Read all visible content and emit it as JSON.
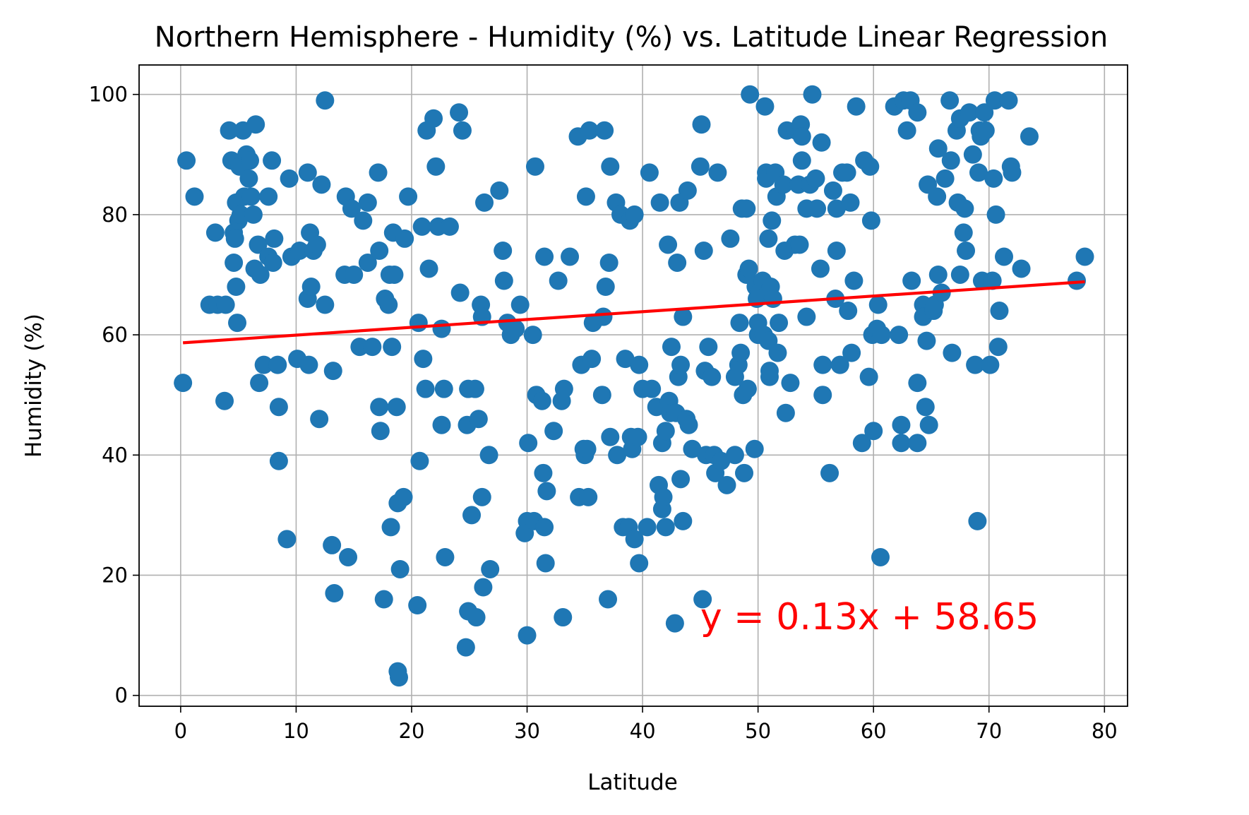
{
  "chart_data": {
    "type": "scatter",
    "title": "Northern Hemisphere - Humidity (%) vs. Latitude Linear Regression",
    "xlabel": "Latitude",
    "ylabel": "Humidity (%)",
    "xlim": [
      -3.6,
      82
    ],
    "ylim": [
      -1.8,
      104.9
    ],
    "xticks": [
      0,
      10,
      20,
      30,
      40,
      50,
      60,
      70,
      80
    ],
    "yticks": [
      0,
      20,
      40,
      60,
      80,
      100
    ],
    "grid": true,
    "point_color": "#1f77b4",
    "line_color": "#ff0000",
    "regression": {
      "slope": 0.13,
      "intercept": 58.65,
      "x_range": [
        0.2,
        78.3
      ],
      "equation": "y = 0.13x + 58.65",
      "equation_position": [
        45,
        11
      ]
    },
    "points": [
      [
        0.2,
        52
      ],
      [
        0.5,
        89
      ],
      [
        1.2,
        83
      ],
      [
        2.5,
        65
      ],
      [
        3,
        77
      ],
      [
        3.2,
        65
      ],
      [
        3.9,
        65
      ],
      [
        3.8,
        49
      ],
      [
        4.2,
        94
      ],
      [
        4.4,
        89
      ],
      [
        4.6,
        72
      ],
      [
        4.6,
        77
      ],
      [
        4.7,
        76
      ],
      [
        4.8,
        68
      ],
      [
        4.8,
        82
      ],
      [
        4.9,
        62
      ],
      [
        5,
        79
      ],
      [
        5.1,
        88
      ],
      [
        5.2,
        80
      ],
      [
        5.4,
        94
      ],
      [
        5.5,
        83
      ],
      [
        5.7,
        90
      ],
      [
        5.9,
        86
      ],
      [
        6,
        89
      ],
      [
        6.1,
        83
      ],
      [
        6.3,
        80
      ],
      [
        6.5,
        95
      ],
      [
        6.4,
        71
      ],
      [
        6.7,
        75
      ],
      [
        6.8,
        52
      ],
      [
        6.9,
        70
      ],
      [
        7.2,
        55
      ],
      [
        7.6,
        73
      ],
      [
        7.6,
        83
      ],
      [
        7.9,
        89
      ],
      [
        8,
        72
      ],
      [
        8.1,
        76
      ],
      [
        8.4,
        55
      ],
      [
        8.5,
        48
      ],
      [
        8.5,
        39
      ],
      [
        9.2,
        26
      ],
      [
        9.4,
        86
      ],
      [
        9.6,
        73
      ],
      [
        10.1,
        56
      ],
      [
        10.3,
        74
      ],
      [
        11,
        87
      ],
      [
        11,
        66
      ],
      [
        11.1,
        55
      ],
      [
        11.2,
        77
      ],
      [
        11.3,
        68
      ],
      [
        11.5,
        74
      ],
      [
        11.8,
        75
      ],
      [
        12,
        46
      ],
      [
        12.2,
        85
      ],
      [
        12.5,
        99
      ],
      [
        12.5,
        65
      ],
      [
        13.1,
        25
      ],
      [
        13.2,
        54
      ],
      [
        13.3,
        17
      ],
      [
        14.2,
        70
      ],
      [
        14.3,
        83
      ],
      [
        14.5,
        23
      ],
      [
        14.8,
        81
      ],
      [
        15,
        70
      ],
      [
        15.5,
        58
      ],
      [
        15.8,
        79
      ],
      [
        16.2,
        72
      ],
      [
        16.2,
        82
      ],
      [
        16.6,
        58
      ],
      [
        17.1,
        87
      ],
      [
        17.2,
        74
      ],
      [
        17.2,
        48
      ],
      [
        17.3,
        44
      ],
      [
        17.6,
        16
      ],
      [
        17.7,
        66
      ],
      [
        18,
        65
      ],
      [
        18.1,
        70
      ],
      [
        18.2,
        28
      ],
      [
        18.3,
        58
      ],
      [
        18.4,
        77
      ],
      [
        18.5,
        70
      ],
      [
        18.7,
        48
      ],
      [
        18.8,
        32
      ],
      [
        18.8,
        4
      ],
      [
        18.9,
        3
      ],
      [
        19,
        21
      ],
      [
        19.3,
        33
      ],
      [
        19.4,
        76
      ],
      [
        19.7,
        83
      ],
      [
        20.5,
        15
      ],
      [
        20.6,
        62
      ],
      [
        20.7,
        39
      ],
      [
        20.9,
        78
      ],
      [
        21,
        56
      ],
      [
        21.2,
        51
      ],
      [
        21.3,
        94
      ],
      [
        21.5,
        71
      ],
      [
        21.9,
        96
      ],
      [
        22.1,
        88
      ],
      [
        22.3,
        78
      ],
      [
        22.6,
        61
      ],
      [
        22.6,
        45
      ],
      [
        22.8,
        51
      ],
      [
        22.9,
        23
      ],
      [
        23.3,
        78
      ],
      [
        24.1,
        97
      ],
      [
        24.2,
        67
      ],
      [
        24.4,
        94
      ],
      [
        24.7,
        8
      ],
      [
        24.8,
        45
      ],
      [
        24.9,
        51
      ],
      [
        24.9,
        14
      ],
      [
        25.2,
        30
      ],
      [
        25.5,
        51
      ],
      [
        25.6,
        13
      ],
      [
        25.8,
        46
      ],
      [
        26,
        65
      ],
      [
        26.1,
        63
      ],
      [
        26.1,
        33
      ],
      [
        26.2,
        18
      ],
      [
        26.3,
        82
      ],
      [
        26.7,
        40
      ],
      [
        26.8,
        21
      ],
      [
        27.6,
        84
      ],
      [
        27.9,
        74
      ],
      [
        28,
        69
      ],
      [
        28.3,
        62
      ],
      [
        28.6,
        60
      ],
      [
        29,
        61
      ],
      [
        29.4,
        65
      ],
      [
        29.8,
        27
      ],
      [
        30,
        29
      ],
      [
        30,
        10
      ],
      [
        30.1,
        42
      ],
      [
        30.5,
        60
      ],
      [
        30.6,
        29
      ],
      [
        30.7,
        88
      ],
      [
        30.8,
        50
      ],
      [
        31.3,
        49
      ],
      [
        31.4,
        37
      ],
      [
        31.5,
        28
      ],
      [
        31.5,
        73
      ],
      [
        31.6,
        22
      ],
      [
        31.7,
        34
      ],
      [
        32.3,
        44
      ],
      [
        32.7,
        69
      ],
      [
        33,
        49
      ],
      [
        33.1,
        13
      ],
      [
        33.2,
        51
      ],
      [
        33.7,
        73
      ],
      [
        34.4,
        93
      ],
      [
        34.5,
        33
      ],
      [
        34.7,
        55
      ],
      [
        34.9,
        41
      ],
      [
        35,
        40
      ],
      [
        35.1,
        83
      ],
      [
        35.2,
        41
      ],
      [
        35.3,
        33
      ],
      [
        35.4,
        94
      ],
      [
        35.6,
        56
      ],
      [
        35.7,
        62
      ],
      [
        36.5,
        50
      ],
      [
        36.6,
        63
      ],
      [
        36.7,
        94
      ],
      [
        36.8,
        68
      ],
      [
        37,
        16
      ],
      [
        37.1,
        72
      ],
      [
        37.2,
        88
      ],
      [
        37.2,
        43
      ],
      [
        37.7,
        82
      ],
      [
        37.8,
        40
      ],
      [
        38.1,
        80
      ],
      [
        38.3,
        28
      ],
      [
        38.5,
        56
      ],
      [
        38.8,
        28
      ],
      [
        38.9,
        79
      ],
      [
        39,
        43
      ],
      [
        39.1,
        41
      ],
      [
        39.3,
        80
      ],
      [
        39.3,
        26
      ],
      [
        39.6,
        43
      ],
      [
        39.7,
        55
      ],
      [
        39.7,
        22
      ],
      [
        40,
        51
      ],
      [
        40.4,
        28
      ],
      [
        40.6,
        87
      ],
      [
        40.8,
        51
      ],
      [
        41.2,
        48
      ],
      [
        41.4,
        35
      ],
      [
        41.5,
        82
      ],
      [
        41.7,
        42
      ],
      [
        41.7,
        31
      ],
      [
        41.8,
        33
      ],
      [
        42,
        44
      ],
      [
        42,
        28
      ],
      [
        42.2,
        75
      ],
      [
        42.3,
        49
      ],
      [
        42.4,
        47
      ],
      [
        42.5,
        58
      ],
      [
        42.8,
        12
      ],
      [
        42.9,
        47
      ],
      [
        43,
        72
      ],
      [
        43.1,
        53
      ],
      [
        43.2,
        82
      ],
      [
        43.3,
        55
      ],
      [
        43.3,
        36
      ],
      [
        43.5,
        63
      ],
      [
        43.5,
        29
      ],
      [
        43.8,
        46
      ],
      [
        43.9,
        84
      ],
      [
        44,
        45
      ],
      [
        44.3,
        41
      ],
      [
        45,
        88
      ],
      [
        45.1,
        95
      ],
      [
        45.2,
        16
      ],
      [
        45.3,
        74
      ],
      [
        45.4,
        54
      ],
      [
        45.5,
        40
      ],
      [
        45.7,
        58
      ],
      [
        46,
        53
      ],
      [
        46.2,
        40
      ],
      [
        46.3,
        37
      ],
      [
        46.5,
        87
      ],
      [
        46.8,
        39
      ],
      [
        47.3,
        35
      ],
      [
        47.6,
        76
      ],
      [
        48,
        40
      ],
      [
        48,
        53
      ],
      [
        48.3,
        55
      ],
      [
        48.4,
        62
      ],
      [
        48.5,
        57
      ],
      [
        48.6,
        81
      ],
      [
        48.7,
        50
      ],
      [
        48.8,
        37
      ],
      [
        49,
        70
      ],
      [
        49,
        81
      ],
      [
        49.1,
        51
      ],
      [
        49.2,
        71
      ],
      [
        49.3,
        100
      ],
      [
        49.7,
        41
      ],
      [
        49.8,
        68
      ],
      [
        49.9,
        66
      ],
      [
        50,
        62
      ],
      [
        50,
        60
      ],
      [
        50.1,
        67
      ],
      [
        50.4,
        69
      ],
      [
        50.5,
        60
      ],
      [
        50.6,
        98
      ],
      [
        50.7,
        87
      ],
      [
        50.7,
        86
      ],
      [
        50.9,
        59
      ],
      [
        50.9,
        76
      ],
      [
        51,
        53
      ],
      [
        51,
        54
      ],
      [
        51.1,
        68
      ],
      [
        51.2,
        79
      ],
      [
        51.3,
        66
      ],
      [
        51.5,
        87
      ],
      [
        51.6,
        83
      ],
      [
        51.7,
        57
      ],
      [
        51.8,
        62
      ],
      [
        52.2,
        85
      ],
      [
        52.3,
        74
      ],
      [
        52.4,
        47
      ],
      [
        52.5,
        94
      ],
      [
        52.8,
        52
      ],
      [
        53.2,
        75
      ],
      [
        53.3,
        94
      ],
      [
        53.5,
        85
      ],
      [
        53.6,
        75
      ],
      [
        53.7,
        95
      ],
      [
        53.8,
        89
      ],
      [
        53.8,
        93
      ],
      [
        54.2,
        63
      ],
      [
        54.2,
        81
      ],
      [
        54.5,
        85
      ],
      [
        54.7,
        100
      ],
      [
        55,
        86
      ],
      [
        55.1,
        81
      ],
      [
        55.4,
        71
      ],
      [
        55.5,
        92
      ],
      [
        55.6,
        50
      ],
      [
        55.6,
        55
      ],
      [
        56.2,
        37
      ],
      [
        56.5,
        84
      ],
      [
        56.7,
        66
      ],
      [
        56.8,
        74
      ],
      [
        56.8,
        81
      ],
      [
        57.1,
        55
      ],
      [
        57.3,
        87
      ],
      [
        57.7,
        87
      ],
      [
        57.8,
        64
      ],
      [
        58,
        82
      ],
      [
        58.1,
        57
      ],
      [
        58.3,
        69
      ],
      [
        58.5,
        98
      ],
      [
        59,
        42
      ],
      [
        59.2,
        89
      ],
      [
        59.6,
        53
      ],
      [
        59.7,
        88
      ],
      [
        59.8,
        79
      ],
      [
        59.9,
        60
      ],
      [
        60,
        44
      ],
      [
        60.3,
        61
      ],
      [
        60.4,
        65
      ],
      [
        60.6,
        23
      ],
      [
        60.7,
        60
      ],
      [
        61.8,
        98
      ],
      [
        62.2,
        60
      ],
      [
        62.4,
        45
      ],
      [
        62.4,
        42
      ],
      [
        62.6,
        99
      ],
      [
        62.9,
        94
      ],
      [
        63.2,
        99
      ],
      [
        63.3,
        69
      ],
      [
        63.8,
        97
      ],
      [
        63.8,
        42
      ],
      [
        63.8,
        52
      ],
      [
        64.3,
        65
      ],
      [
        64.3,
        63
      ],
      [
        64.5,
        48
      ],
      [
        64.6,
        59
      ],
      [
        64.7,
        85
      ],
      [
        64.8,
        45
      ],
      [
        65.2,
        64
      ],
      [
        65.3,
        65
      ],
      [
        65.5,
        83
      ],
      [
        65.6,
        70
      ],
      [
        65.6,
        91
      ],
      [
        65.9,
        67
      ],
      [
        66.2,
        86
      ],
      [
        66.6,
        99
      ],
      [
        66.7,
        89
      ],
      [
        66.8,
        57
      ],
      [
        67.2,
        94
      ],
      [
        67.3,
        82
      ],
      [
        67.5,
        96
      ],
      [
        67.5,
        70
      ],
      [
        67.8,
        77
      ],
      [
        67.9,
        81
      ],
      [
        68,
        74
      ],
      [
        68.3,
        97
      ],
      [
        68.6,
        90
      ],
      [
        68.8,
        55
      ],
      [
        69,
        29
      ],
      [
        69.1,
        87
      ],
      [
        69.2,
        94
      ],
      [
        69.3,
        93
      ],
      [
        69.4,
        69
      ],
      [
        69.6,
        97
      ],
      [
        69.7,
        94
      ],
      [
        70.1,
        55
      ],
      [
        70.3,
        69
      ],
      [
        70.4,
        86
      ],
      [
        70.5,
        99
      ],
      [
        70.6,
        80
      ],
      [
        70.8,
        58
      ],
      [
        70.9,
        64
      ],
      [
        71.3,
        73
      ],
      [
        71.7,
        99
      ],
      [
        71.9,
        88
      ],
      [
        72,
        87
      ],
      [
        72.8,
        71
      ],
      [
        73.5,
        93
      ],
      [
        77.6,
        69
      ],
      [
        78.3,
        73
      ]
    ]
  }
}
